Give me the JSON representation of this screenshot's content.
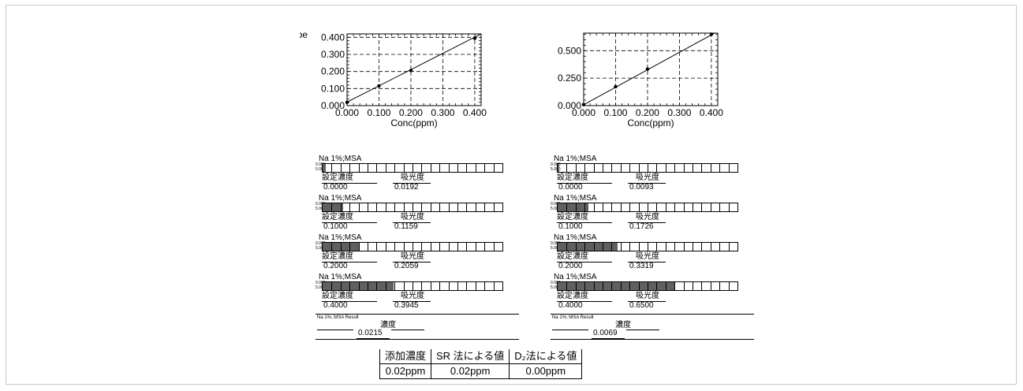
{
  "chart_data": [
    {
      "type": "scatter",
      "ylabel": "Abe",
      "xlabel": "Conc(ppm)",
      "xlim": [
        0,
        0.42
      ],
      "ylim": [
        0,
        0.42
      ],
      "x_ticks": [
        "0.000",
        "0.100",
        "0.200",
        "0.300",
        "0.400"
      ],
      "y_ticks": [
        "0.000",
        "0.100",
        "0.200",
        "0.300",
        "0.400"
      ],
      "grid": true,
      "points": [
        [
          0.0,
          0.0192
        ],
        [
          0.1,
          0.1159
        ],
        [
          0.2,
          0.2059
        ],
        [
          0.4,
          0.3945
        ]
      ],
      "fit_line": [
        [
          -0.022,
          0
        ],
        [
          0.42,
          0.42
        ]
      ]
    },
    {
      "type": "scatter",
      "ylabel": "",
      "xlabel": "Conc(ppm)",
      "xlim": [
        0,
        0.42
      ],
      "ylim": [
        0,
        0.66
      ],
      "x_ticks": [
        "0.000",
        "0.100",
        "0.200",
        "0.300",
        "0.400"
      ],
      "y_ticks": [
        "0.000",
        "0.250",
        "0.500"
      ],
      "grid": true,
      "points": [
        [
          0.0,
          0.0093
        ],
        [
          0.1,
          0.1726
        ],
        [
          0.2,
          0.3319
        ],
        [
          0.4,
          0.65
        ]
      ],
      "fit_line": [
        [
          -0.005,
          0
        ],
        [
          0.41,
          0.66
        ]
      ]
    }
  ],
  "labels": {
    "measurement": "Na 1%;MSA",
    "scale_top": "0.000",
    "scale_bottom": "5.000",
    "conc_label": "設定濃度",
    "abs_label": "吸光度",
    "result_title": "Na 1%;:MSA Result",
    "result_label": "濃度"
  },
  "panels": [
    {
      "measurements": [
        {
          "conc": "0.0000",
          "abs": "0.0192",
          "fill": 0.0192
        },
        {
          "conc": "0.1000",
          "abs": "0.1159",
          "fill": 0.1159
        },
        {
          "conc": "0.2000",
          "abs": "0.2059",
          "fill": 0.2059
        },
        {
          "conc": "0.4000",
          "abs": "0.3945",
          "fill": 0.3945
        }
      ],
      "result": "0.0215"
    },
    {
      "measurements": [
        {
          "conc": "0.0000",
          "abs": "0.0093",
          "fill": 0.0093
        },
        {
          "conc": "0.1000",
          "abs": "0.1726",
          "fill": 0.1726
        },
        {
          "conc": "0.2000",
          "abs": "0.3319",
          "fill": 0.3319
        },
        {
          "conc": "0.4000",
          "abs": "0.6500",
          "fill": 0.65
        }
      ],
      "result": "0.0069"
    }
  ],
  "summary": {
    "headers": [
      "添加濃度",
      "SR 法による値",
      "D₂法による値"
    ],
    "row": [
      "0.02ppm",
      "0.02ppm",
      "0.00ppm"
    ]
  }
}
